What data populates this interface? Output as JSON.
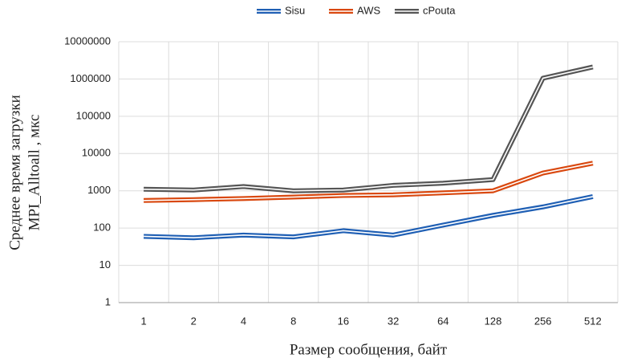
{
  "chart_data": {
    "type": "line",
    "xlabel": "Размер сообщения, байт",
    "ylabel": [
      "Среднее время загрузки",
      "MPI_Alltoall , мкс"
    ],
    "categories": [
      "1",
      "2",
      "4",
      "8",
      "16",
      "32",
      "64",
      "128",
      "256",
      "512"
    ],
    "series": [
      {
        "name": "Sisu",
        "color": "#1f5fb4",
        "values": [
          60,
          55,
          65,
          58,
          85,
          65,
          120,
          220,
          370,
          700
        ]
      },
      {
        "name": "AWS",
        "color": "#d9480f",
        "values": [
          550,
          580,
          620,
          680,
          750,
          780,
          880,
          1000,
          3000,
          5500
        ]
      },
      {
        "name": "cPouta",
        "color": "#555555",
        "values": [
          1100,
          1050,
          1300,
          1000,
          1050,
          1400,
          1600,
          2000,
          1050000,
          2100000
        ]
      }
    ],
    "log_y": true,
    "ylim": [
      1,
      10000000
    ],
    "yticks": [
      1,
      10,
      100,
      1000,
      10000,
      100000,
      1000000,
      10000000
    ],
    "grid": true,
    "legend": "top"
  }
}
